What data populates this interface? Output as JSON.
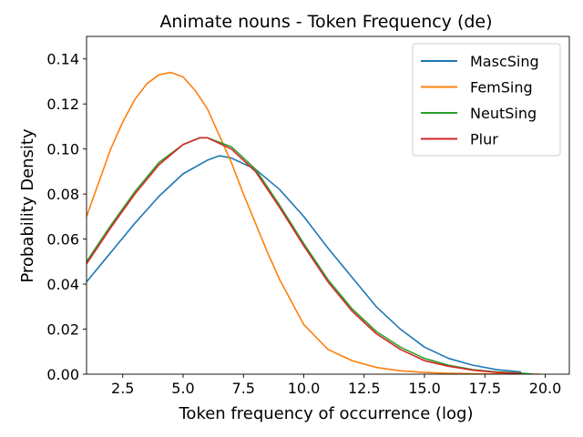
{
  "chart_data": {
    "type": "line",
    "title": "Animate nouns - Token Frequency (de)",
    "xlabel": "Token frequency of occurrence (log)",
    "ylabel": "Probability Density",
    "xlim": [
      1.0,
      21.0
    ],
    "ylim": [
      0.0,
      0.15
    ],
    "xticks": [
      2.5,
      5.0,
      7.5,
      10.0,
      12.5,
      15.0,
      17.5,
      20.0
    ],
    "xtick_labels": [
      "2.5",
      "5.0",
      "7.5",
      "10.0",
      "12.5",
      "15.0",
      "17.5",
      "20.0"
    ],
    "yticks": [
      0.0,
      0.02,
      0.04,
      0.06,
      0.08,
      0.1,
      0.12,
      0.14
    ],
    "ytick_labels": [
      "0.00",
      "0.02",
      "0.04",
      "0.06",
      "0.08",
      "0.10",
      "0.12",
      "0.14"
    ],
    "grid": false,
    "legend_position": "top-right",
    "series": [
      {
        "name": "MascSing",
        "color": "#1f77b4",
        "x": [
          1.0,
          2.0,
          3.0,
          4.0,
          5.0,
          6.0,
          6.5,
          7.0,
          8.0,
          9.0,
          10.0,
          11.0,
          12.0,
          13.0,
          14.0,
          15.0,
          16.0,
          17.0,
          18.0,
          19.0
        ],
        "y": [
          0.041,
          0.054,
          0.067,
          0.079,
          0.089,
          0.095,
          0.097,
          0.096,
          0.091,
          0.082,
          0.07,
          0.056,
          0.043,
          0.03,
          0.02,
          0.012,
          0.007,
          0.004,
          0.002,
          0.001
        ]
      },
      {
        "name": "FemSing",
        "color": "#ff7f0e",
        "x": [
          1.0,
          1.5,
          2.0,
          2.5,
          3.0,
          3.5,
          4.0,
          4.5,
          5.0,
          5.5,
          6.0,
          6.5,
          7.0,
          7.5,
          8.0,
          8.5,
          9.0,
          10.0,
          11.0,
          12.0,
          13.0,
          14.0,
          15.0,
          16.0,
          17.0,
          18.0,
          19.0,
          19.8
        ],
        "y": [
          0.07,
          0.085,
          0.1,
          0.112,
          0.122,
          0.129,
          0.133,
          0.134,
          0.132,
          0.126,
          0.118,
          0.106,
          0.094,
          0.08,
          0.067,
          0.054,
          0.042,
          0.022,
          0.011,
          0.006,
          0.003,
          0.0015,
          0.0008,
          0.0004,
          0.0002,
          0.0001,
          0.0,
          0.0
        ]
      },
      {
        "name": "NeutSing",
        "color": "#2ca02c",
        "x": [
          1.0,
          2.0,
          3.0,
          4.0,
          5.0,
          5.7,
          6.0,
          7.0,
          8.0,
          9.0,
          10.0,
          11.0,
          12.0,
          13.0,
          14.0,
          15.0,
          16.0,
          17.0,
          18.0,
          19.0,
          19.5
        ],
        "y": [
          0.05,
          0.066,
          0.081,
          0.094,
          0.102,
          0.105,
          0.105,
          0.101,
          0.091,
          0.075,
          0.058,
          0.042,
          0.029,
          0.019,
          0.012,
          0.007,
          0.004,
          0.002,
          0.001,
          0.0005,
          0.0
        ]
      },
      {
        "name": "Plur",
        "color": "#d62728",
        "x": [
          1.0,
          2.0,
          3.0,
          4.0,
          5.0,
          5.7,
          6.0,
          7.0,
          8.0,
          9.0,
          10.0,
          11.0,
          12.0,
          13.0,
          14.0,
          15.0,
          16.0,
          17.0,
          18.0,
          19.0
        ],
        "y": [
          0.049,
          0.065,
          0.08,
          0.093,
          0.102,
          0.105,
          0.105,
          0.1,
          0.09,
          0.074,
          0.057,
          0.041,
          0.028,
          0.018,
          0.011,
          0.006,
          0.0035,
          0.0018,
          0.0008,
          0.0003
        ]
      }
    ]
  }
}
